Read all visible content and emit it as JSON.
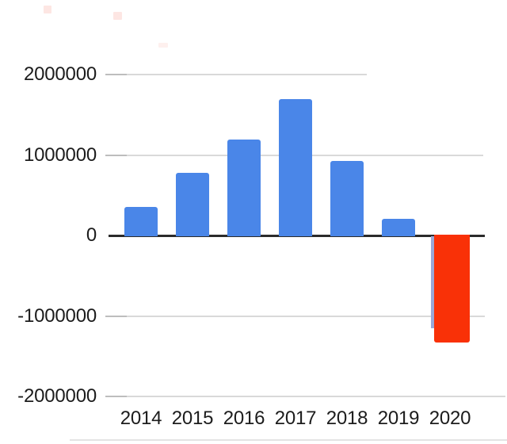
{
  "chart_data": {
    "type": "bar",
    "title": "",
    "xlabel": "",
    "ylabel": "",
    "categories": [
      "2014",
      "2015",
      "2016",
      "2017",
      "2018",
      "2019",
      "2020"
    ],
    "values": [
      350000,
      775000,
      1190000,
      1690000,
      930000,
      210000,
      -1330000
    ],
    "positive_color": "#4a86e8",
    "negative_color": "#f93107",
    "ylim": [
      -2000000,
      2000000
    ],
    "yticks": [
      {
        "value": 2000000,
        "label": "2000000"
      },
      {
        "value": 1000000,
        "label": "1000000"
      },
      {
        "value": 0,
        "label": "0"
      },
      {
        "value": -1000000,
        "label": "-1000000"
      },
      {
        "value": -2000000,
        "label": "-2000000"
      }
    ],
    "grid": true,
    "legend_position": "none",
    "axis_color": "#2b2b2b",
    "gridline_color": "#d9d9d9",
    "text_color": "#1c1c1c",
    "background_color": "#ffffff"
  }
}
